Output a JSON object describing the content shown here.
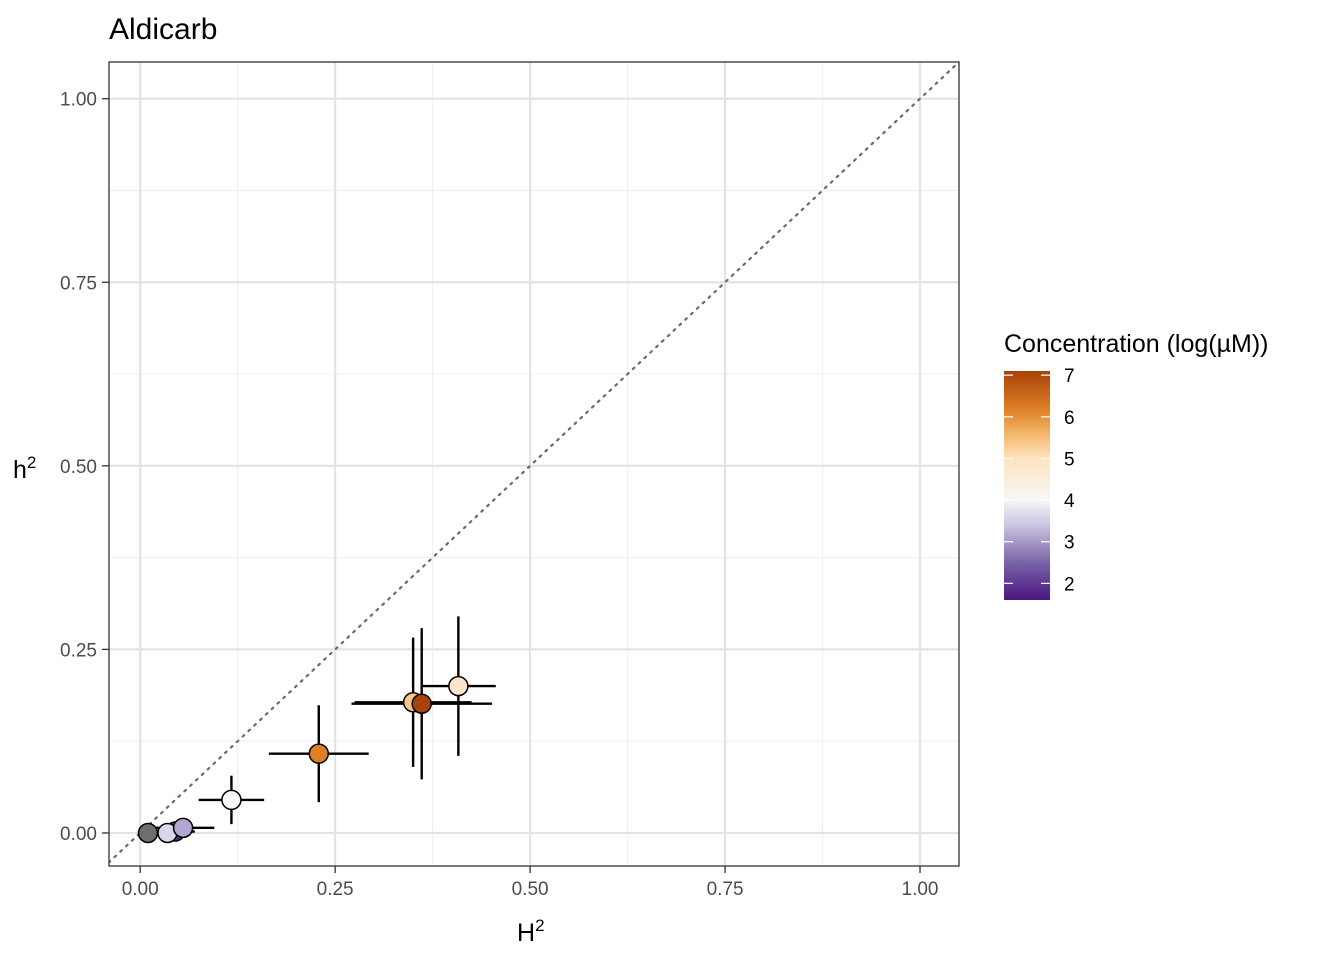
{
  "chart_data": {
    "type": "scatter",
    "title": "Aldicarb",
    "xlabel": {
      "base": "H",
      "superscript": "2"
    },
    "ylabel": {
      "base": "h",
      "superscript": "2"
    },
    "xlim": [
      -0.04,
      1.05
    ],
    "ylim": [
      -0.045,
      1.05
    ],
    "x_ticks": [
      0.0,
      0.25,
      0.5,
      0.75,
      1.0
    ],
    "x_tick_labels": [
      "0.00",
      "0.25",
      "0.50",
      "0.75",
      "1.00"
    ],
    "y_ticks": [
      0.0,
      0.25,
      0.5,
      0.75,
      1.0
    ],
    "y_tick_labels": [
      "0.00",
      "0.25",
      "0.50",
      "0.75",
      "1.00"
    ],
    "grid": true,
    "reference_line": {
      "type": "identity",
      "style": "dotted"
    },
    "legend": {
      "title": "Concentration (log(µM))",
      "type": "colorbar",
      "placement": "right",
      "range": [
        1.6,
        7.1
      ],
      "ticks": [
        2,
        3,
        4,
        5,
        6,
        7
      ],
      "tick_labels": [
        "2",
        "3",
        "4",
        "5",
        "6",
        "7"
      ],
      "color_stops": [
        {
          "value": 1.6,
          "color": "#4b1680"
        },
        {
          "value": 2.5,
          "color": "#7a63a8"
        },
        {
          "value": 3.4,
          "color": "#cbc5e1"
        },
        {
          "value": 4.0,
          "color": "#f7f7f7"
        },
        {
          "value": 5.0,
          "color": "#fde3bf"
        },
        {
          "value": 5.6,
          "color": "#f3b66a"
        },
        {
          "value": 6.2,
          "color": "#dd7f24"
        },
        {
          "value": 7.1,
          "color": "#a84209"
        }
      ]
    },
    "points": [
      {
        "x": 0.01,
        "y": 0.0,
        "x_err": 0.0,
        "y_err": 0.0,
        "color": "#6e6e6e",
        "concentration": null
      },
      {
        "x": 0.045,
        "y": 0.002,
        "x_err": 0.025,
        "y_err": 0.004,
        "color": "#58348e",
        "concentration": 2.0
      },
      {
        "x": 0.035,
        "y": 0.0,
        "x_err": 0.02,
        "y_err": 0.003,
        "color": "#d9d5ea",
        "concentration": 3.6
      },
      {
        "x": 0.055,
        "y": 0.007,
        "x_err": 0.04,
        "y_err": 0.005,
        "color": "#b1a7d1",
        "concentration": 3.1
      },
      {
        "x": 0.117,
        "y": 0.045,
        "x_err": 0.042,
        "y_err": 0.033,
        "color": "#fbfbfb",
        "concentration": 4.1
      },
      {
        "x": 0.229,
        "y": 0.108,
        "x_err": 0.064,
        "y_err": 0.066,
        "color": "#dd7f24",
        "concentration": 6.2
      },
      {
        "x": 0.35,
        "y": 0.178,
        "x_err": 0.075,
        "y_err": 0.088,
        "color": "#f8c68c",
        "concentration": 5.6
      },
      {
        "x": 0.361,
        "y": 0.176,
        "x_err": 0.09,
        "y_err": 0.103,
        "color": "#a84209",
        "concentration": 7.0
      },
      {
        "x": 0.408,
        "y": 0.2,
        "x_err": 0.048,
        "y_err": 0.095,
        "color": "#fbe6cb",
        "concentration": 5.0
      }
    ]
  }
}
